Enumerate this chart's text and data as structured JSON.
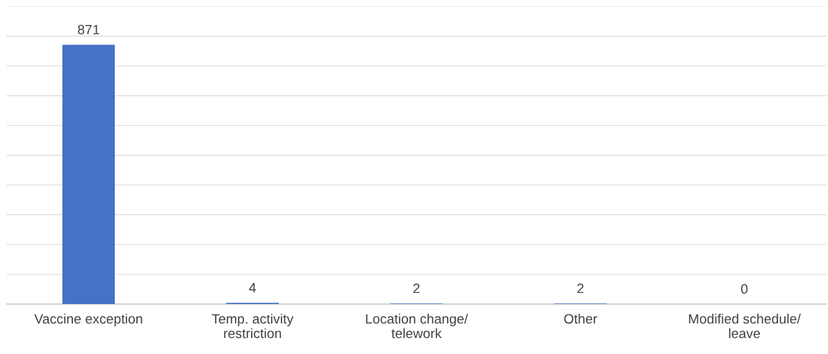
{
  "chart_data": {
    "type": "bar",
    "categories": [
      "Vaccine exception",
      "Temp. activity\nrestriction",
      "Location change/\ntelework",
      "Other",
      "Modified schedule/\nleave"
    ],
    "values": [
      871,
      4,
      2,
      2,
      0
    ],
    "color": "#4472c4",
    "data_labels": true,
    "ylim": [
      0,
      1000
    ],
    "yticks": [
      {
        "value": 0,
        "label": null
      },
      {
        "value": 100,
        "label": null
      },
      {
        "value": 200,
        "label": null
      },
      {
        "value": 300,
        "label": null
      },
      {
        "value": 400,
        "label": null
      },
      {
        "value": 500,
        "label": null
      },
      {
        "value": 600,
        "label": null
      },
      {
        "value": 700,
        "label": null
      },
      {
        "value": 800,
        "label": null
      },
      {
        "value": 900,
        "label": null
      },
      {
        "value": 1000,
        "label": null
      }
    ],
    "grid": "y",
    "tick_labels": "x"
  }
}
